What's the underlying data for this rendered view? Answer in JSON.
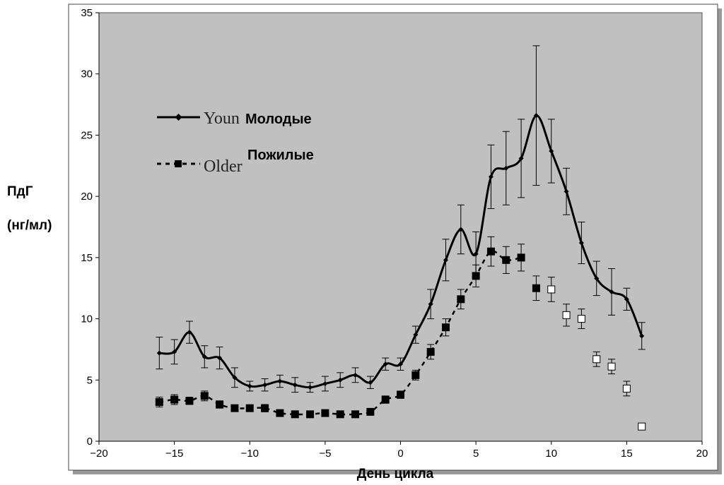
{
  "chart_data": {
    "type": "line",
    "xlabel": "День цикла",
    "ylabel_line1": "ПдГ",
    "ylabel_line2": "(нг/мл)",
    "xlim": [
      -20,
      20
    ],
    "ylim": [
      0,
      35
    ],
    "x_ticks": [
      -20,
      -15,
      -10,
      -5,
      0,
      5,
      10,
      15,
      20
    ],
    "x_tick_labels": [
      "−20",
      "−15",
      "−10",
      "−5",
      "0",
      "5",
      "10",
      "15",
      "20"
    ],
    "y_ticks": [
      0,
      5,
      10,
      15,
      20,
      25,
      30,
      35
    ],
    "y_tick_labels": [
      "0",
      "5",
      "10",
      "15",
      "20",
      "25",
      "30",
      "35"
    ],
    "grid": false,
    "plot_background": "#c0c0c0",
    "legend_position": "upper-left",
    "series": [
      {
        "name": "Молодые",
        "legend_overlay_text": "Youn",
        "style": "solid",
        "marker": "diamond",
        "color": "#000000",
        "x": [
          -16,
          -15,
          -14,
          -13,
          -12,
          -11,
          -10,
          -9,
          -8,
          -7,
          -6,
          -5,
          -4,
          -3,
          -2,
          -1,
          0,
          1,
          2,
          3,
          4,
          5,
          6,
          7,
          8,
          9,
          10,
          11,
          12,
          13,
          14,
          15,
          16
        ],
        "y": [
          7.2,
          7.3,
          8.9,
          6.9,
          6.8,
          5.2,
          4.5,
          4.6,
          4.9,
          4.6,
          4.4,
          4.7,
          5.0,
          5.4,
          4.8,
          6.3,
          6.3,
          8.7,
          11.2,
          14.8,
          17.3,
          15.3,
          21.6,
          22.3,
          23.1,
          26.6,
          23.7,
          20.4,
          16.2,
          13.3,
          12.2,
          11.6,
          8.6
        ],
        "err": [
          1.3,
          1.0,
          0.9,
          0.9,
          0.9,
          0.8,
          0.4,
          0.5,
          0.5,
          0.6,
          0.4,
          0.6,
          0.6,
          0.6,
          0.5,
          0.5,
          0.5,
          0.7,
          1.2,
          1.7,
          2.0,
          1.8,
          2.6,
          3.0,
          3.2,
          5.7,
          2.6,
          1.9,
          1.7,
          1.4,
          1.9,
          0.9,
          1.1
        ]
      },
      {
        "name": "Пожилые",
        "legend_overlay_text": "Older",
        "style": "dashed",
        "marker": "square",
        "color": "#000000",
        "x": [
          -16,
          -15,
          -14,
          -13,
          -12,
          -11,
          -10,
          -9,
          -8,
          -7,
          -6,
          -5,
          -4,
          -3,
          -2,
          -1,
          0,
          1,
          2,
          3,
          4,
          5,
          6,
          7,
          8,
          9,
          10,
          11,
          12,
          13,
          14,
          15,
          16
        ],
        "y": [
          3.2,
          3.4,
          3.3,
          3.7,
          3.0,
          2.7,
          2.7,
          2.7,
          2.3,
          2.2,
          2.2,
          2.3,
          2.2,
          2.2,
          2.4,
          3.4,
          3.8,
          5.4,
          7.3,
          9.3,
          11.6,
          13.5,
          15.5,
          14.8,
          15.0,
          12.5,
          12.4,
          10.3,
          10.0,
          6.7,
          6.1,
          4.3,
          1.2
        ],
        "err": [
          0.4,
          0.4,
          0.3,
          0.4,
          0.3,
          0.2,
          0.2,
          0.3,
          0.2,
          0.2,
          0.2,
          0.2,
          0.2,
          0.2,
          0.2,
          0.3,
          0.3,
          0.4,
          0.6,
          0.7,
          0.8,
          0.9,
          1.2,
          1.1,
          1.1,
          1.0,
          1.0,
          0.9,
          0.8,
          0.6,
          0.6,
          0.6,
          0.2
        ],
        "hollow_from_x": 10,
        "connected_until_x": 8
      }
    ]
  }
}
